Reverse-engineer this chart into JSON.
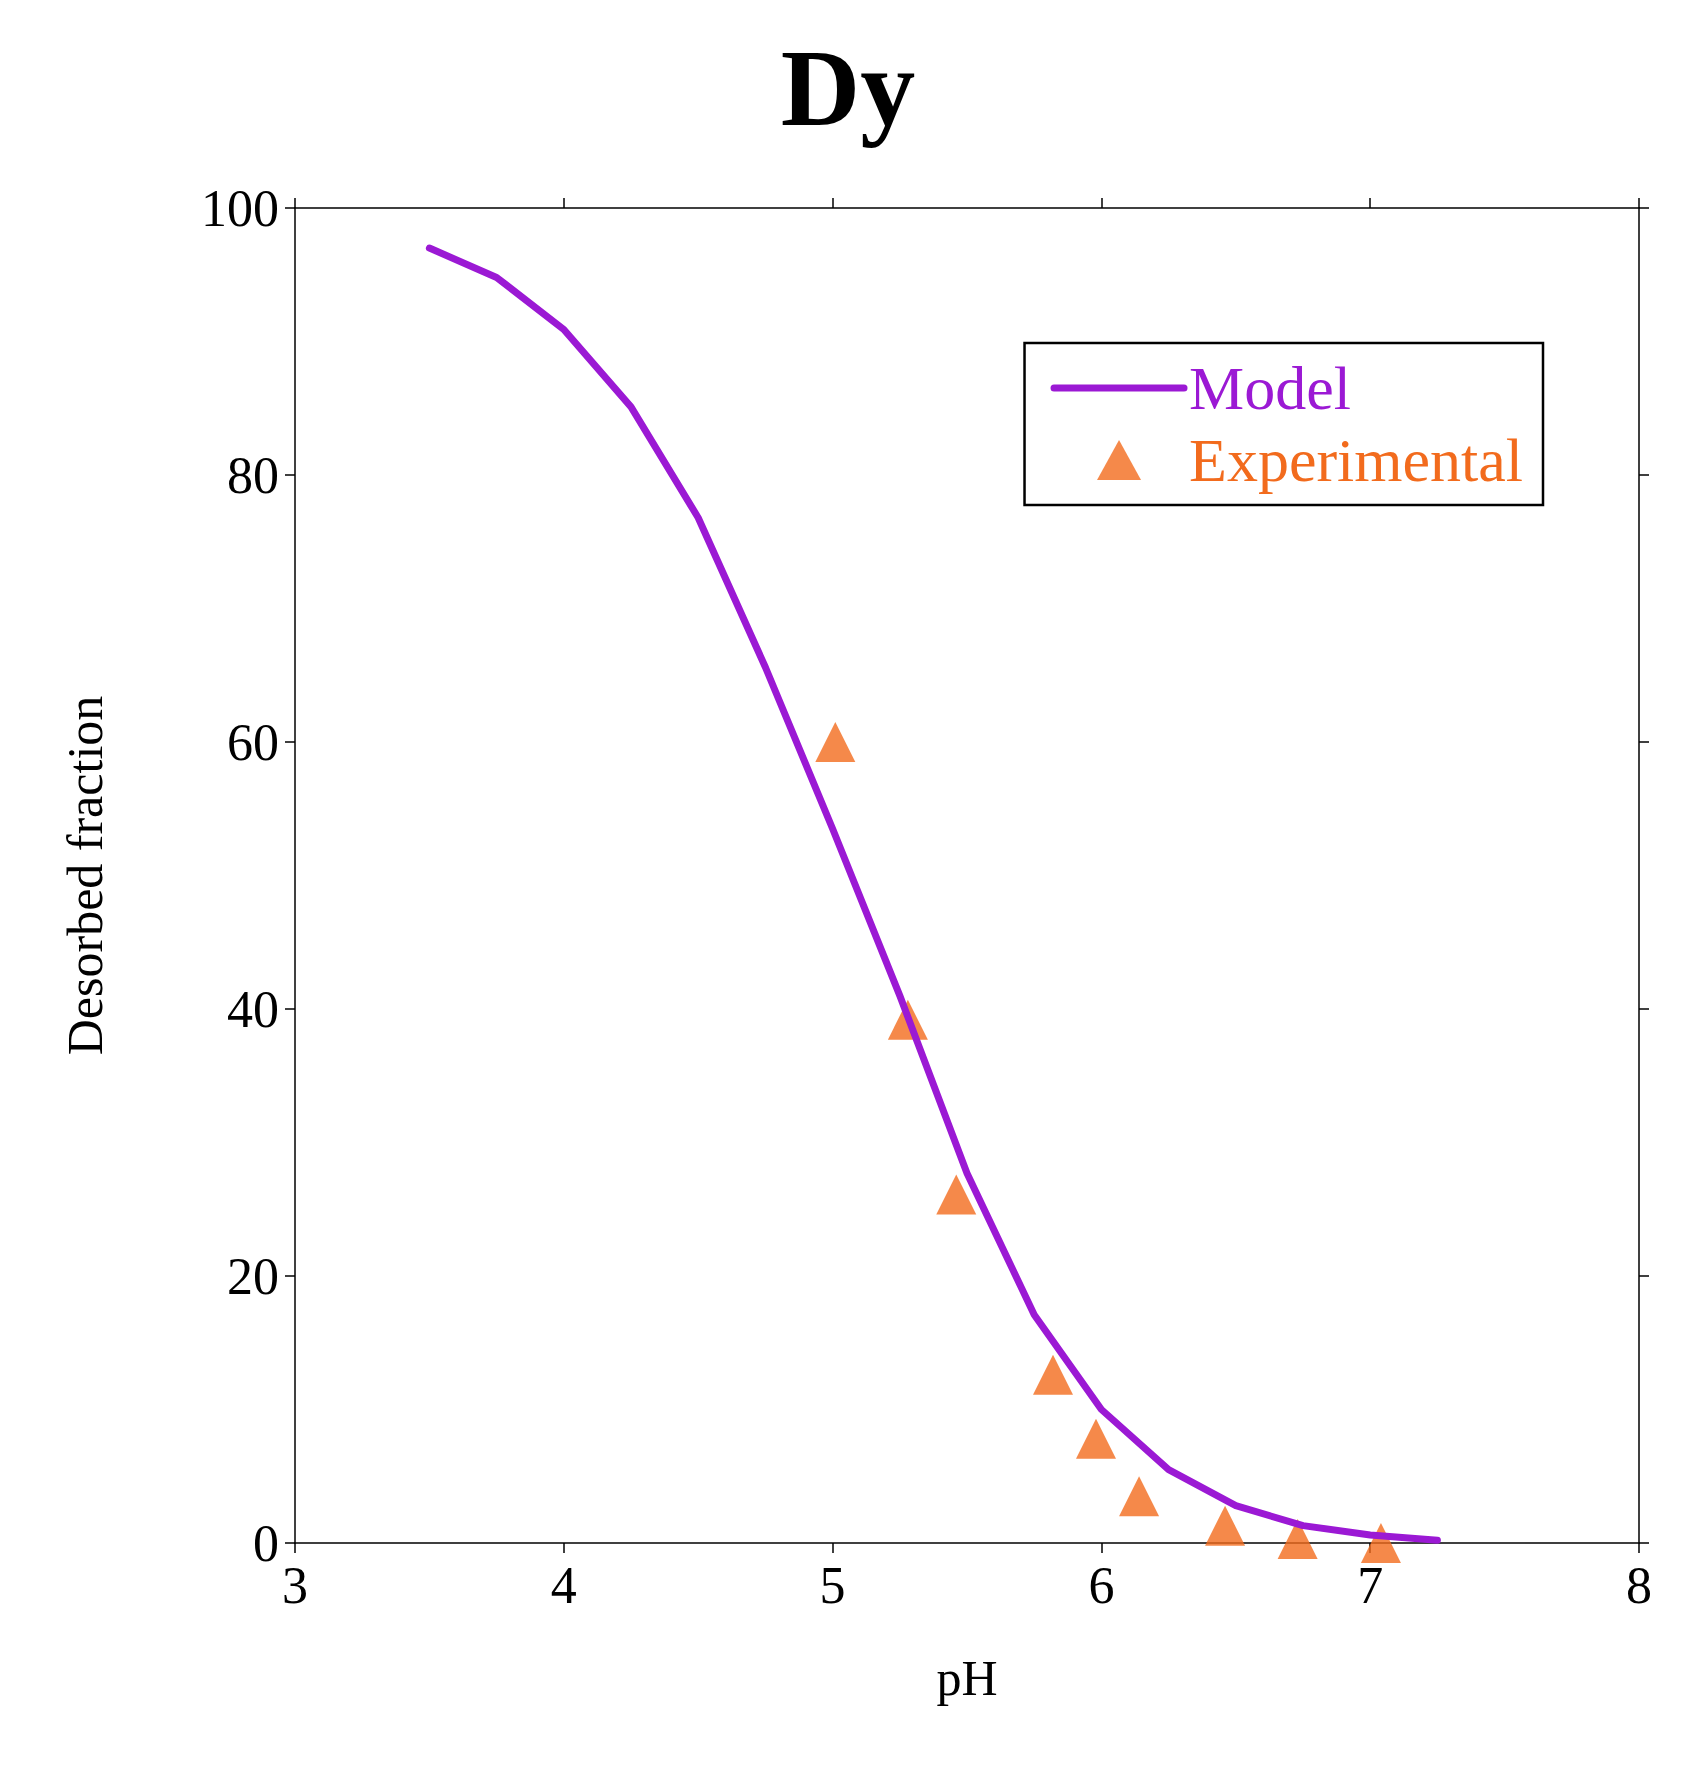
{
  "chart_data": {
    "type": "line",
    "title": "Dy",
    "xlabel": "pH",
    "ylabel": "Desorbed fraction",
    "xlim": [
      3,
      8
    ],
    "xticks": [
      3,
      4,
      5,
      6,
      7,
      8
    ],
    "ylim": [
      0,
      100
    ],
    "yticks": [
      0,
      20,
      40,
      60,
      80,
      100
    ],
    "grid": false,
    "legend": "top right",
    "series": [
      {
        "name": "Model",
        "color": "#9b19d4",
        "marker": "none",
        "line_style": "solid",
        "x": [
          3.5,
          3.75,
          4.0,
          4.25,
          4.5,
          4.75,
          5.0,
          5.25,
          5.5,
          5.75,
          6.0,
          6.25,
          6.5,
          6.75,
          7.0,
          7.25
        ],
        "values": [
          97.0,
          94.8,
          90.9,
          85.1,
          76.8,
          65.6,
          53.5,
          41.0,
          27.7,
          17.1,
          10.0,
          5.5,
          2.8,
          1.3,
          0.6,
          0.2
        ]
      },
      {
        "name": "Experimental",
        "type": "scatter",
        "color": "#f26b1d",
        "marker": "triangle",
        "x": [
          5.01,
          5.28,
          5.46,
          5.82,
          5.98,
          6.14,
          6.46,
          6.73,
          7.04
        ],
        "values": [
          60.0,
          39.2,
          26.1,
          12.6,
          7.8,
          3.5,
          1.3,
          0.3,
          0.0
        ]
      }
    ]
  }
}
